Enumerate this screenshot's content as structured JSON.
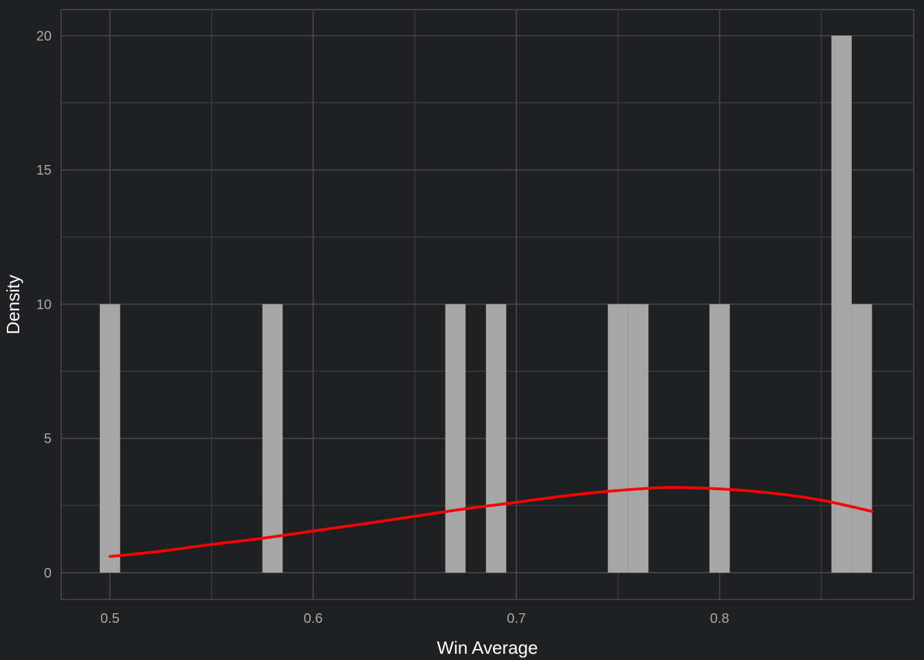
{
  "chart_data": {
    "type": "bar",
    "xlabel": "Win Average",
    "ylabel": "Density",
    "xlim": [
      0.476,
      0.8955
    ],
    "ylim": [
      -1.0,
      20.97
    ],
    "x_ticks": [
      {
        "value": 0.5,
        "label": "0.5"
      },
      {
        "value": 0.6,
        "label": "0.6"
      },
      {
        "value": 0.7,
        "label": "0.7"
      },
      {
        "value": 0.8,
        "label": "0.8"
      }
    ],
    "y_ticks": [
      {
        "value": 0,
        "label": "0"
      },
      {
        "value": 5,
        "label": "5"
      },
      {
        "value": 10,
        "label": "10"
      },
      {
        "value": 15,
        "label": "15"
      },
      {
        "value": 20,
        "label": "20"
      }
    ],
    "x_minor": [
      0.55,
      0.65,
      0.75,
      0.85
    ],
    "y_minor": [
      2.5,
      7.5,
      12.5,
      17.5
    ],
    "grid": true,
    "bin_width": 0.01,
    "bars": [
      {
        "x": 0.5,
        "density": 10
      },
      {
        "x": 0.58,
        "density": 10
      },
      {
        "x": 0.67,
        "density": 10
      },
      {
        "x": 0.69,
        "density": 10
      },
      {
        "x": 0.75,
        "density": 10
      },
      {
        "x": 0.76,
        "density": 10
      },
      {
        "x": 0.8,
        "density": 10
      },
      {
        "x": 0.86,
        "density": 20
      },
      {
        "x": 0.87,
        "density": 10
      }
    ],
    "density_curve": {
      "x": [
        0.5,
        0.525,
        0.55,
        0.575,
        0.6,
        0.625,
        0.65,
        0.675,
        0.7,
        0.725,
        0.75,
        0.775,
        0.8,
        0.825,
        0.85,
        0.875
      ],
      "y": [
        0.6,
        0.8,
        1.05,
        1.28,
        1.55,
        1.82,
        2.1,
        2.38,
        2.62,
        2.87,
        3.06,
        3.17,
        3.12,
        2.97,
        2.7,
        2.28
      ]
    },
    "colors": {
      "background": "#1f2022",
      "bars": "#a6a6a6",
      "curve": "#ff0000",
      "tick_text": "#a9a9a9",
      "title_text": "#ffffff"
    }
  }
}
